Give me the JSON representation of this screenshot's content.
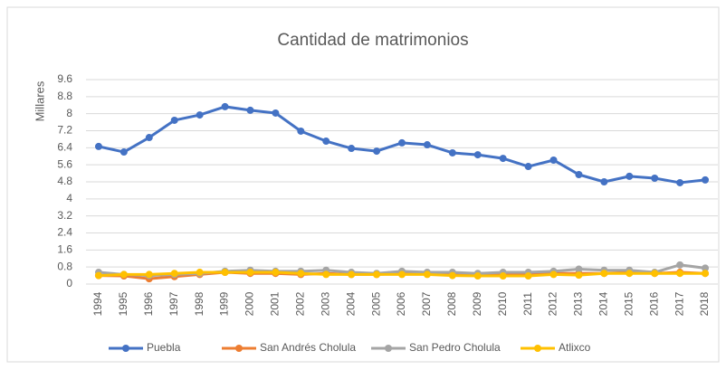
{
  "chart_data": {
    "type": "line",
    "title": "Cantidad de matrimonios",
    "y_label": "Millares",
    "categories": [
      "1994",
      "1995",
      "1996",
      "1997",
      "1998",
      "1999",
      "2000",
      "2001",
      "2002",
      "2003",
      "2004",
      "2005",
      "2006",
      "2007",
      "2008",
      "2009",
      "2010",
      "2011",
      "2012",
      "2013",
      "2014",
      "2015",
      "2016",
      "2017",
      "2018"
    ],
    "series": [
      {
        "name": "Puebla",
        "color": "#4472c4",
        "values": [
          6.46,
          6.2,
          6.88,
          7.69,
          7.94,
          8.33,
          8.16,
          8.03,
          7.18,
          6.71,
          6.37,
          6.24,
          6.63,
          6.54,
          6.16,
          6.07,
          5.9,
          5.52,
          5.82,
          5.14,
          4.8,
          5.06,
          4.97,
          4.76,
          4.89
        ]
      },
      {
        "name": "San Andrés Cholula",
        "color": "#ed7d31",
        "values": [
          0.4,
          0.38,
          0.25,
          0.35,
          0.45,
          0.55,
          0.5,
          0.5,
          0.45,
          0.5,
          0.45,
          0.45,
          0.5,
          0.5,
          0.45,
          0.4,
          0.45,
          0.45,
          0.5,
          0.5,
          0.5,
          0.55,
          0.5,
          0.55,
          0.5
        ]
      },
      {
        "name": "San Pedro Cholula",
        "color": "#a5a5a5",
        "values": [
          0.55,
          0.45,
          0.4,
          0.45,
          0.5,
          0.6,
          0.65,
          0.6,
          0.6,
          0.65,
          0.55,
          0.5,
          0.6,
          0.55,
          0.55,
          0.5,
          0.55,
          0.55,
          0.6,
          0.7,
          0.65,
          0.65,
          0.55,
          0.9,
          0.75
        ]
      },
      {
        "name": "Atlixco",
        "color": "#ffc000",
        "values": [
          0.4,
          0.45,
          0.45,
          0.5,
          0.55,
          0.55,
          0.55,
          0.55,
          0.5,
          0.45,
          0.45,
          0.45,
          0.45,
          0.45,
          0.4,
          0.38,
          0.38,
          0.38,
          0.45,
          0.42,
          0.5,
          0.5,
          0.5,
          0.5,
          0.5
        ]
      }
    ],
    "ylim": [
      0,
      9.6
    ],
    "yticks": [
      0,
      0.8,
      1.6,
      2.4,
      3.2,
      4,
      4.8,
      5.6,
      6.4,
      7.2,
      8,
      8.8,
      9.6
    ],
    "grid": true,
    "legend": "bottom"
  }
}
